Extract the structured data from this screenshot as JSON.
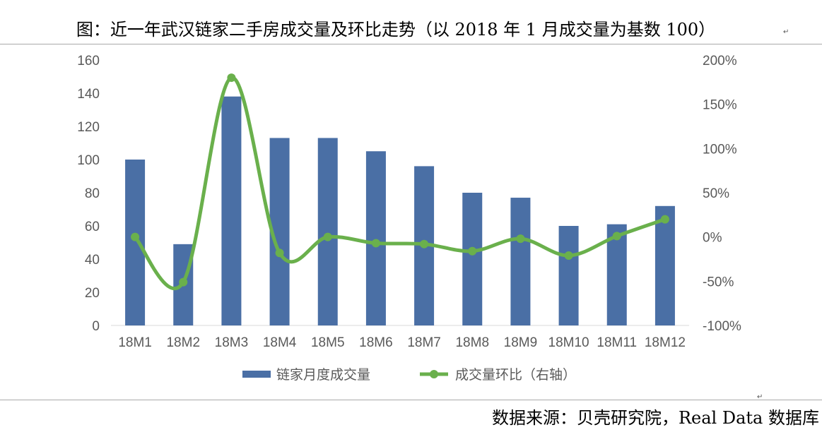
{
  "header": {
    "title": "图：近一年武汉链家二手房成交量及环比走势（以 2018 年 1 月成交量为基数 100）"
  },
  "footer": {
    "source": "数据来源：贝壳研究院，Real Data 数据库"
  },
  "colors": {
    "bar": "#4a6fa5",
    "line": "#6ab04c",
    "axis_text": "#595959",
    "axis_line": "#d9d9d9"
  },
  "chart_data": {
    "type": "bar",
    "title": "",
    "categories": [
      "18M1",
      "18M2",
      "18M3",
      "18M4",
      "18M5",
      "18M6",
      "18M7",
      "18M8",
      "18M9",
      "18M10",
      "18M11",
      "18M12"
    ],
    "series": [
      {
        "name": "链家月度成交量",
        "type": "bar",
        "axis": "left",
        "values": [
          100,
          49,
          138,
          113,
          113,
          105,
          96,
          80,
          77,
          60,
          61,
          72
        ]
      },
      {
        "name": "成交量环比（右轴）",
        "type": "line",
        "axis": "right",
        "values": [
          0,
          -51,
          180,
          -18,
          0,
          -7,
          -8,
          -16,
          -2,
          -21,
          1,
          20
        ]
      }
    ],
    "y_left": {
      "min": 0,
      "max": 160,
      "ticks": [
        "0",
        "20",
        "40",
        "60",
        "80",
        "100",
        "120",
        "140",
        "160"
      ]
    },
    "y_right": {
      "min": -100,
      "max": 200,
      "ticks": [
        "-100%",
        "-50%",
        "0%",
        "50%",
        "100%",
        "150%",
        "200%"
      ]
    },
    "grid": false,
    "legend": "bottom"
  }
}
